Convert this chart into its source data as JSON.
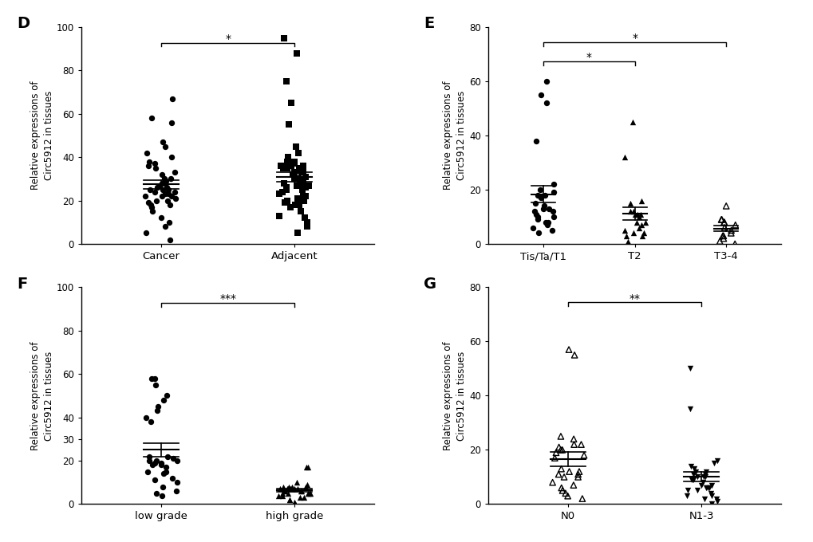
{
  "panel_D": {
    "label": "D",
    "ylabel": "Relative expressions of\nCirc5912 in tissues",
    "groups": [
      "Cancer",
      "Adjacent"
    ],
    "ylim": [
      0,
      100
    ],
    "yticks": [
      0,
      20,
      40,
      60,
      80,
      100
    ],
    "significance": "*",
    "cancer_data": [
      2,
      5,
      8,
      10,
      12,
      15,
      17,
      18,
      18,
      19,
      20,
      21,
      22,
      22,
      22,
      23,
      23,
      24,
      24,
      25,
      25,
      25,
      26,
      26,
      27,
      27,
      28,
      28,
      29,
      30,
      30,
      32,
      33,
      35,
      36,
      37,
      38,
      40,
      42,
      45,
      47,
      56,
      58,
      67,
      20
    ],
    "adjacent_data": [
      5,
      8,
      10,
      12,
      13,
      15,
      17,
      18,
      18,
      19,
      20,
      20,
      21,
      22,
      22,
      23,
      24,
      25,
      25,
      26,
      26,
      27,
      27,
      28,
      29,
      30,
      30,
      31,
      32,
      33,
      34,
      35,
      35,
      36,
      36,
      37,
      37,
      38,
      38,
      40,
      42,
      45,
      55,
      65,
      75,
      88,
      95,
      27,
      26,
      35,
      33,
      36,
      34,
      22,
      20,
      21,
      28,
      27
    ]
  },
  "panel_E": {
    "label": "E",
    "ylabel": "Relative expressions of\nCirc5912 in tissues",
    "groups": [
      "Tis/Ta/T1",
      "T2",
      "T3-4"
    ],
    "ylim": [
      0,
      80
    ],
    "yticks": [
      0,
      20,
      40,
      60,
      80
    ],
    "significance": [
      "*",
      "*"
    ],
    "tis_data": [
      60,
      55,
      52,
      38,
      22,
      20,
      19,
      18,
      18,
      17,
      15,
      14,
      13,
      13,
      12,
      12,
      11,
      10,
      10,
      9,
      8,
      8,
      7,
      6,
      5,
      4
    ],
    "t2_data": [
      45,
      32,
      16,
      15,
      12,
      12,
      11,
      11,
      11,
      10,
      8,
      8,
      7,
      6,
      5,
      4,
      4,
      3,
      3,
      1
    ],
    "t34_data": [
      14,
      9,
      9,
      8,
      8,
      7,
      6,
      5,
      4,
      3,
      3,
      2,
      1,
      0
    ]
  },
  "panel_F": {
    "label": "F",
    "ylabel": "Relative expressions of\nCirc5912 in tissues",
    "groups": [
      "low grade",
      "high grade"
    ],
    "ylim": [
      0,
      100
    ],
    "yticks": [
      0,
      20,
      30,
      40,
      60,
      80,
      100
    ],
    "significance": "***",
    "low_data": [
      58,
      58,
      55,
      50,
      48,
      45,
      43,
      40,
      38,
      22,
      22,
      21,
      20,
      20,
      20,
      19,
      19,
      18,
      18,
      17,
      15,
      15,
      14,
      12,
      11,
      10,
      8,
      6,
      5,
      4
    ],
    "high_data": [
      17,
      17,
      10,
      9,
      8,
      8,
      8,
      8,
      7,
      7,
      7,
      7,
      7,
      7,
      7,
      6,
      6,
      6,
      6,
      5,
      5,
      5,
      5,
      5,
      4,
      4,
      3,
      3,
      2,
      2,
      1,
      0
    ]
  },
  "panel_G": {
    "label": "G",
    "ylabel": "Relative expressions of\nCirc5912 in tissues",
    "groups": [
      "N0",
      "N1-3"
    ],
    "ylim": [
      0,
      80
    ],
    "yticks": [
      0,
      20,
      40,
      60,
      80
    ],
    "significance": "**",
    "n0_data": [
      57,
      55,
      25,
      24,
      22,
      22,
      21,
      20,
      20,
      19,
      18,
      17,
      13,
      12,
      12,
      11,
      11,
      10,
      10,
      8,
      7,
      6,
      5,
      4,
      3,
      2
    ],
    "n13_data": [
      50,
      35,
      16,
      15,
      14,
      13,
      12,
      12,
      11,
      11,
      10,
      10,
      10,
      9,
      9,
      8,
      7,
      7,
      6,
      6,
      6,
      5,
      5,
      4,
      3,
      3,
      2,
      2,
      1,
      0
    ]
  }
}
